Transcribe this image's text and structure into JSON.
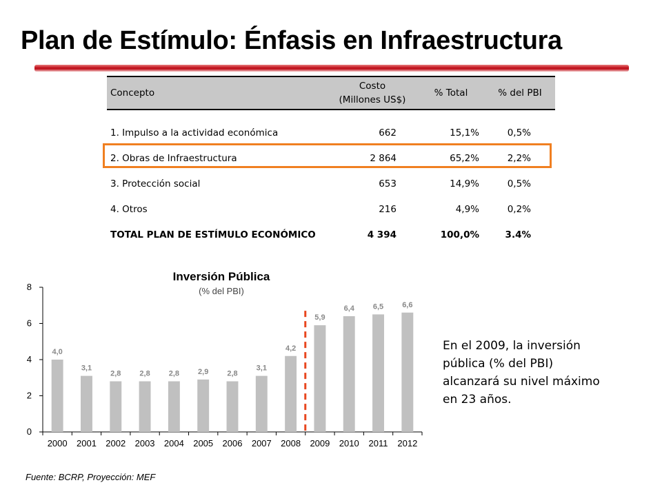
{
  "title": "Plan de Estímulo: Énfasis en Infraestructura",
  "table": {
    "headers": {
      "concepto": "Concepto",
      "costo_line1": "Costo",
      "costo_line2": "(Millones US$)",
      "pct_total": "% Total",
      "pct_pbi": "% del PBI"
    },
    "rows": [
      {
        "concepto": "1. Impulso a la actividad económica",
        "costo": "662",
        "pct_total": "15,1%",
        "pct_pbi": "0,5%"
      },
      {
        "concepto": "2. Obras de Infraestructura",
        "costo": "2 864",
        "pct_total": "65,2%",
        "pct_pbi": "2,2%"
      },
      {
        "concepto": "3. Protección social",
        "costo": "653",
        "pct_total": "14,9%",
        "pct_pbi": "0,5%"
      },
      {
        "concepto": "4. Otros",
        "costo": "216",
        "pct_total": "4,9%",
        "pct_pbi": "0,2%"
      }
    ],
    "total": {
      "concepto": "TOTAL PLAN DE ESTÍMULO ECONÓMICO",
      "costo": "4 394",
      "pct_total": "100,0%",
      "pct_pbi": "3.4%"
    },
    "highlight_color": "#f07f20"
  },
  "chart_data": {
    "type": "bar",
    "title": "Inversión Pública",
    "subtitle": "(% del PBI)",
    "categories": [
      "2000",
      "2001",
      "2002",
      "2003",
      "2004",
      "2005",
      "2006",
      "2007",
      "2008",
      "2009",
      "2010",
      "2011",
      "2012"
    ],
    "values": [
      4.0,
      3.1,
      2.8,
      2.8,
      2.8,
      2.9,
      2.8,
      3.1,
      4.2,
      5.9,
      6.4,
      6.5,
      6.6
    ],
    "data_labels": [
      "4,0",
      "3,1",
      "2,8",
      "2,8",
      "2,8",
      "2,9",
      "2,8",
      "3,1",
      "4,2",
      "5,9",
      "6,4",
      "6,5",
      "6,6"
    ],
    "ylim": [
      0,
      8
    ],
    "yticks": [
      0,
      2,
      4,
      6,
      8
    ],
    "grid": false,
    "bar_color": "#c0c0c0",
    "divider_color": "#e8461e",
    "divider_between": [
      "2008",
      "2009"
    ]
  },
  "note": {
    "line1": "En el 2009, la inversión",
    "line2": "pública (% del PBI)",
    "line3": "alcanzará su nivel máximo",
    "line4": "en 23 años."
  },
  "source": "Fuente: BCRP, Proyección: MEF"
}
